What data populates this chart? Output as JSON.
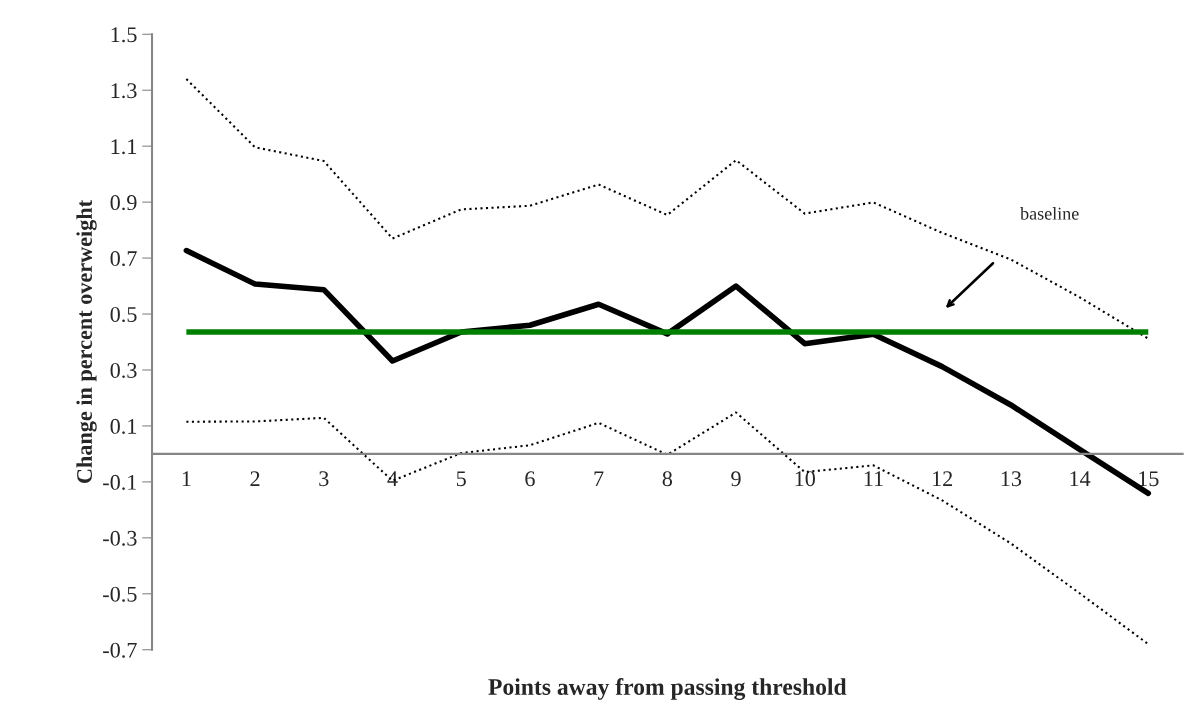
{
  "chart_data": {
    "type": "line",
    "xlabel": "Points away from passing threshold",
    "ylabel": "Change in percent overweight",
    "categories": [
      "1",
      "2",
      "3",
      "4",
      "5",
      "6",
      "7",
      "8",
      "9",
      "10",
      "11",
      "12",
      "13",
      "14",
      "15"
    ],
    "series": [
      {
        "color": "#000000",
        "line_style": "solid",
        "values": [
          0.727,
          0.607,
          0.587,
          0.332,
          0.436,
          0.46,
          0.535,
          0.429,
          0.6,
          0.394,
          0.428,
          0.312,
          0.175,
          0.016,
          -0.141
        ]
      },
      {
        "color": "#000000",
        "line_style": "dotted",
        "values": [
          1.34,
          1.096,
          1.047,
          0.77,
          0.874,
          0.887,
          0.963,
          0.854,
          1.05,
          0.859,
          0.899,
          0.79,
          0.695,
          0.56,
          0.412
        ]
      },
      {
        "color": "#000000",
        "line_style": "dotted",
        "values": [
          0.115,
          0.116,
          0.129,
          -0.096,
          0.003,
          0.031,
          0.111,
          -0.003,
          0.148,
          -0.065,
          -0.041,
          -0.166,
          -0.32,
          -0.498,
          -0.68
        ]
      }
    ],
    "ref_lines": [
      {
        "axis": "y",
        "value": 0.436,
        "color": "#008000",
        "line_style": "solid"
      }
    ],
    "annotations": [
      "baseline"
    ],
    "ylim": [
      -0.7,
      1.5
    ],
    "yticks": [
      -0.7,
      -0.5,
      -0.3,
      -0.1,
      0.1,
      0.3,
      0.5,
      0.7,
      0.9,
      1.1,
      1.3,
      1.5
    ],
    "grid": false,
    "legend": false,
    "marker": "none"
  }
}
